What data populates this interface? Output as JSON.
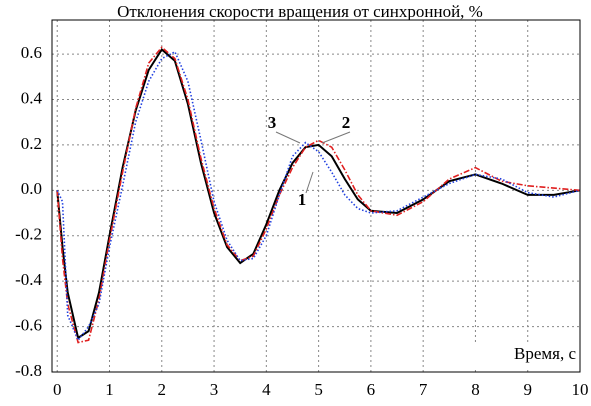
{
  "chart_data": {
    "type": "line",
    "title": "Отклонения скорости вращения от синхронной, %",
    "x_label": "Время, с",
    "annotations": [
      "1",
      "2",
      "3"
    ],
    "x": [
      0,
      0.1,
      0.2,
      0.4,
      0.6,
      0.8,
      1.0,
      1.25,
      1.5,
      1.75,
      2.0,
      2.25,
      2.5,
      2.75,
      3.0,
      3.25,
      3.5,
      3.75,
      4.0,
      4.25,
      4.5,
      4.75,
      5.0,
      5.25,
      5.5,
      5.75,
      6.0,
      6.5,
      7.0,
      7.5,
      8.0,
      8.5,
      9.0,
      9.5,
      10
    ],
    "series": [
      {
        "name": "1",
        "color": "#000000",
        "linestyle": "solid",
        "values": [
          0,
          -0.25,
          -0.45,
          -0.65,
          -0.62,
          -0.45,
          -0.2,
          0.1,
          0.35,
          0.53,
          0.62,
          0.57,
          0.38,
          0.12,
          -0.1,
          -0.25,
          -0.32,
          -0.28,
          -0.15,
          0.0,
          0.12,
          0.19,
          0.2,
          0.15,
          0.05,
          -0.04,
          -0.09,
          -0.1,
          -0.04,
          0.04,
          0.07,
          0.03,
          -0.02,
          -0.02,
          0
        ]
      },
      {
        "name": "2",
        "color": "#e02020",
        "linestyle": "dashdot",
        "values": [
          0,
          -0.3,
          -0.5,
          -0.67,
          -0.66,
          -0.48,
          -0.22,
          0.08,
          0.36,
          0.56,
          0.63,
          0.58,
          0.4,
          0.14,
          -0.08,
          -0.24,
          -0.31,
          -0.29,
          -0.17,
          -0.02,
          0.1,
          0.19,
          0.22,
          0.19,
          0.09,
          -0.02,
          -0.09,
          -0.11,
          -0.05,
          0.05,
          0.1,
          0.04,
          0.02,
          0.01,
          0
        ]
      },
      {
        "name": "3",
        "color": "#2040e0",
        "linestyle": "dotted",
        "values": [
          0,
          -0.05,
          -0.55,
          -0.66,
          -0.6,
          -0.5,
          -0.25,
          0.02,
          0.3,
          0.48,
          0.58,
          0.61,
          0.48,
          0.22,
          -0.05,
          -0.22,
          -0.31,
          -0.3,
          -0.2,
          -0.02,
          0.15,
          0.21,
          0.17,
          0.08,
          -0.02,
          -0.08,
          -0.1,
          -0.09,
          -0.03,
          0.03,
          0.07,
          0.05,
          -0.01,
          -0.03,
          0
        ]
      }
    ],
    "xlim": [
      -0.1,
      10
    ],
    "xticks": [
      0,
      1,
      2,
      3,
      4,
      5,
      6,
      7,
      8,
      9,
      10
    ],
    "ylim": [
      -0.8,
      0.75
    ],
    "yticks": [
      -0.8,
      -0.6,
      -0.4,
      -0.2,
      {
        "value": 0,
        "label": "0.0"
      },
      0.2,
      0.4,
      0.6
    ],
    "grid": true
  }
}
